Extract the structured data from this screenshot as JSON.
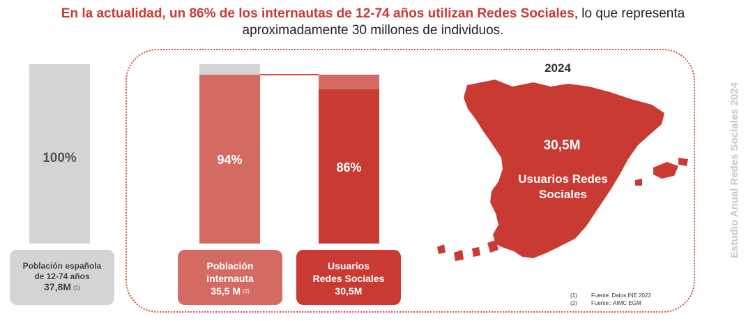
{
  "headline": {
    "highlight": "En la actualidad, un 86% de los internautas de 12-74 años utilizan Redes Sociales",
    "rest_line1": ", lo que representa",
    "line2": "aproximadamente 30 millones de individuos."
  },
  "side_label": "Estudio Anual Redes Sociales 2024",
  "chart_data": {
    "type": "bar",
    "categories": [
      "Población española de 12-74 años",
      "Población internauta",
      "Usuarios Redes Sociales"
    ],
    "values": [
      100,
      94,
      86
    ],
    "value_labels": [
      "100%",
      "94%",
      "86%"
    ],
    "absolute_values_millions": [
      37.8,
      35.5,
      30.5
    ],
    "ylim": [
      0,
      100
    ]
  },
  "cards": {
    "total": {
      "line1": "Población española",
      "line2": "de 12-74 años",
      "number": "37,8M",
      "note": "(1)"
    },
    "internet": {
      "line1": "Población",
      "line2": "internauta",
      "number": "35,5 M",
      "note": "(2)"
    },
    "social": {
      "line1": "Usuarios",
      "line2": "Redes Sociales",
      "number": "30,5M"
    }
  },
  "map": {
    "year": "2024",
    "value": "30,5M",
    "label_line1": "Usuarios Redes",
    "label_line2": "Sociales"
  },
  "sources": [
    {
      "ref": "(1)",
      "text": "Fuente: Datos INE 2022"
    },
    {
      "ref": "(2)",
      "text": "Fuente:: AIMC EGM"
    }
  ],
  "colors": {
    "accent": "#c93a33",
    "light_accent": "#d46b62",
    "grey": "#d4d4d4"
  }
}
